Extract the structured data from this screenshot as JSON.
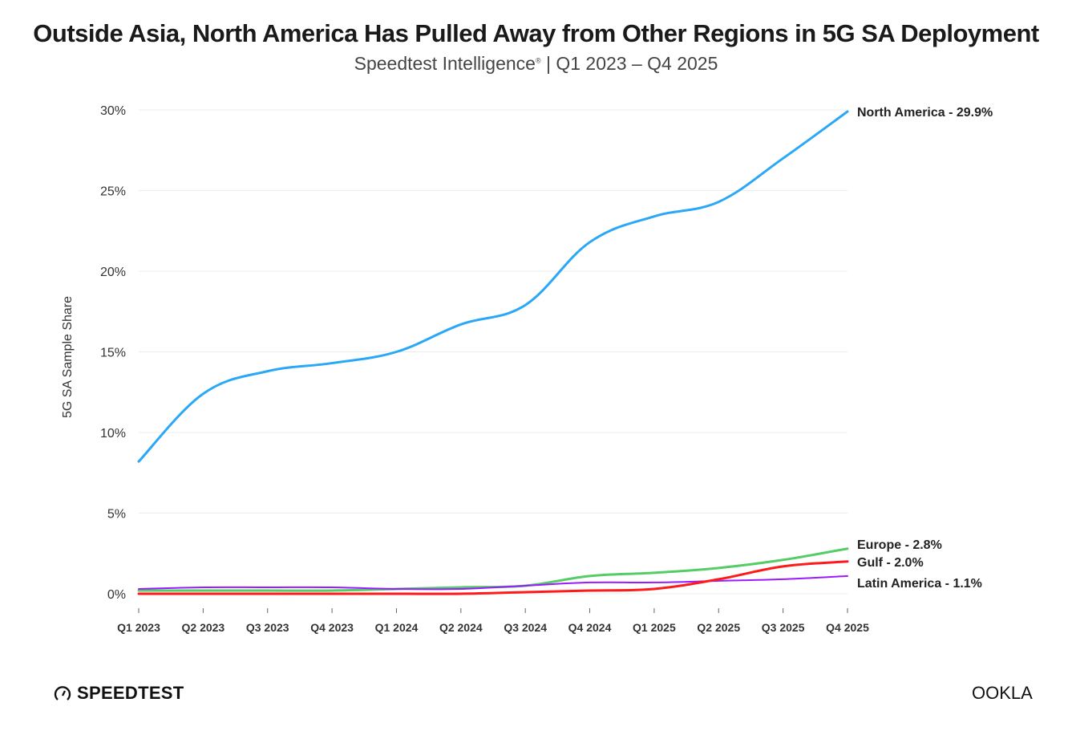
{
  "chart_data": {
    "type": "line",
    "title": "Outside Asia, North America Has Pulled Away from Other Regions in 5G SA Deployment",
    "subtitle_source": "Speedtest Intelligence",
    "subtitle_mark": "®",
    "subtitle_period": "| Q1 2023 – Q4 2025",
    "xlabel": "",
    "ylabel": "5G SA Sample Share",
    "ylim": [
      0,
      30
    ],
    "yticks": [
      0,
      5,
      10,
      15,
      20,
      25,
      30
    ],
    "ytick_labels": [
      "0%",
      "5%",
      "10%",
      "15%",
      "20%",
      "25%",
      "30%"
    ],
    "grid": true,
    "categories": [
      "Q1 2023",
      "Q2 2023",
      "Q3 2023",
      "Q4 2023",
      "Q1 2024",
      "Q2 2024",
      "Q3 2024",
      "Q4 2024",
      "Q1 2025",
      "Q2 2025",
      "Q3 2025",
      "Q4 2025"
    ],
    "series": [
      {
        "name": "North America",
        "label": "North America - 29.9%",
        "color": "#2aa8f7",
        "values": [
          8.2,
          12.4,
          13.8,
          14.3,
          15.0,
          16.7,
          17.9,
          21.8,
          23.4,
          24.3,
          27.0,
          29.9
        ]
      },
      {
        "name": "Europe",
        "label": "Europe - 2.8%",
        "color": "#55cc66",
        "values": [
          0.2,
          0.2,
          0.2,
          0.2,
          0.3,
          0.4,
          0.5,
          1.1,
          1.3,
          1.6,
          2.1,
          2.8
        ]
      },
      {
        "name": "Gulf",
        "label": "Gulf - 2.0%",
        "color": "#ff1a1a",
        "values": [
          0.0,
          0.0,
          0.0,
          0.0,
          0.0,
          0.0,
          0.1,
          0.2,
          0.3,
          0.9,
          1.7,
          2.0
        ]
      },
      {
        "name": "Latin America",
        "label": "Latin America - 1.1%",
        "color": "#9b1aff",
        "values": [
          0.3,
          0.4,
          0.4,
          0.4,
          0.3,
          0.3,
          0.5,
          0.7,
          0.7,
          0.8,
          0.9,
          1.1
        ]
      }
    ]
  },
  "branding": {
    "left": "SPEEDTEST",
    "right": "OOKLA"
  }
}
